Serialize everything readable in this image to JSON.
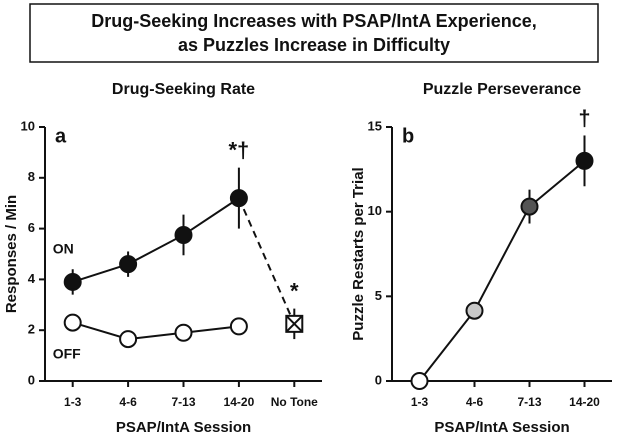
{
  "title": [
    "Drug-Seeking Increases with PSAP/IntA Experience,",
    "as Puzzles Increase in Difficulty"
  ],
  "chart_data": [
    {
      "type": "line",
      "title": "Drug-Seeking Rate",
      "panel": "a",
      "ylabel": "Responses / Min",
      "xlabel": "PSAP/IntA Session",
      "categories": [
        "1-3",
        "4-6",
        "7-13",
        "14-20",
        "No Tone"
      ],
      "ylim": [
        0,
        10
      ],
      "yticks": [
        0,
        2,
        4,
        6,
        8,
        10
      ],
      "series": [
        {
          "name": "ON",
          "color": "#111111",
          "values": [
            3.9,
            4.6,
            5.75,
            7.2,
            null
          ],
          "errors": [
            0.5,
            0.5,
            0.8,
            1.2,
            null
          ]
        },
        {
          "name": "OFF",
          "color": "#ffffff",
          "values": [
            2.3,
            1.65,
            1.9,
            2.15,
            null
          ],
          "errors": [
            0.15,
            0.15,
            0.15,
            0.3,
            null
          ]
        },
        {
          "color": "#ffffff",
          "marker": "boxed-x",
          "linestyle": "dashed",
          "values": [
            null,
            null,
            null,
            null,
            2.25
          ],
          "errors": [
            null,
            null,
            null,
            null,
            0.6
          ]
        }
      ],
      "annotations": [
        {
          "text": "*†",
          "category": "14-20"
        },
        {
          "text": "*",
          "category": "No Tone"
        }
      ]
    },
    {
      "type": "line",
      "title": "Puzzle Perseverance",
      "panel": "b",
      "ylabel": "Puzzle Restarts per Trial",
      "xlabel": "PSAP/IntA Session",
      "categories": [
        "1-3",
        "4-6",
        "7-13",
        "14-20"
      ],
      "ylim": [
        0,
        15
      ],
      "yticks": [
        0,
        5,
        10,
        15
      ],
      "series": [
        {
          "color": "#111111",
          "marker_colors": [
            "#ffffff",
            "#c8c8c8",
            "#555555",
            "#111111"
          ],
          "values": [
            0,
            4.15,
            10.3,
            13
          ],
          "errors": [
            0,
            0.3,
            1.0,
            1.5
          ]
        }
      ],
      "annotations": [
        {
          "text": "†",
          "category": "14-20"
        }
      ]
    }
  ]
}
